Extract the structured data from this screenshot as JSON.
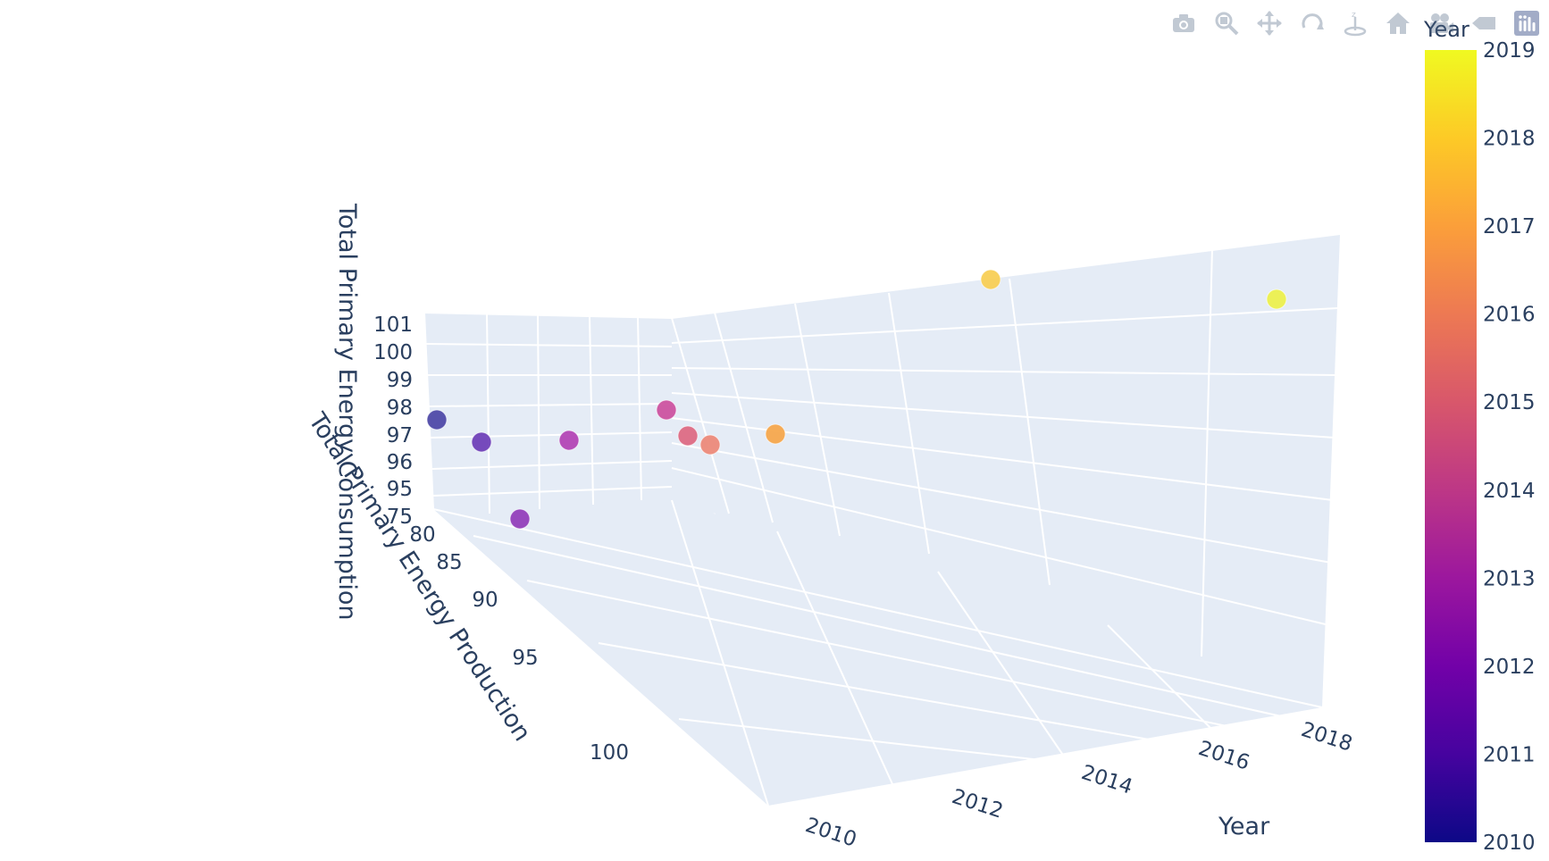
{
  "modebar": {
    "buttons": [
      {
        "name": "download-png-button",
        "icon": "camera-icon"
      },
      {
        "name": "zoom-button",
        "icon": "zoom-icon"
      },
      {
        "name": "pan-button",
        "icon": "pan-icon"
      },
      {
        "name": "orbit-rotation-button",
        "icon": "orbit-icon"
      },
      {
        "name": "turntable-rotation-button",
        "icon": "turntable-icon"
      },
      {
        "name": "reset-camera-button",
        "icon": "home-icon"
      },
      {
        "name": "last-save-camera-button",
        "icon": "camera-video-icon"
      },
      {
        "name": "hover-toggle-button",
        "icon": "hover-icon"
      },
      {
        "name": "plotly-logo-button",
        "icon": "plotly-logo-icon"
      }
    ]
  },
  "chart_data": {
    "type": "scatter",
    "dimensions": "3d",
    "title": "",
    "xlabel": "Year",
    "ylabel": "Total Primary Energy Production",
    "zlabel": "Total Primary Energy Consumption",
    "x_ticks": [
      2010,
      2012,
      2014,
      2016,
      2018
    ],
    "y_ticks": [
      80,
      85,
      90,
      95,
      100
    ],
    "z_ticks": [
      75,
      95,
      96,
      97,
      98,
      99,
      100,
      101
    ],
    "grid": true,
    "color_by": "Year",
    "colorscale": "plasma",
    "colorbar": {
      "title": "Year",
      "ticks": [
        2010,
        2011,
        2012,
        2013,
        2014,
        2015,
        2016,
        2017,
        2018,
        2019
      ],
      "colors": [
        "#0d0887",
        "#46039f",
        "#7201a8",
        "#9c179e",
        "#bd3786",
        "#d8576b",
        "#ed7953",
        "#fb9f3a",
        "#fdca26",
        "#f0f921"
      ],
      "placement": "right"
    },
    "points": [
      {
        "year": 2010,
        "color": "#4f4aa8"
      },
      {
        "year": 2011,
        "color": "#7041b8"
      },
      {
        "year": 2012,
        "color": "#9440bb"
      },
      {
        "year": 2013,
        "color": "#b346b5"
      },
      {
        "year": 2014,
        "color": "#cc53a0"
      },
      {
        "year": 2015,
        "color": "#dd6b84"
      },
      {
        "year": 2016,
        "color": "#ec8a7a"
      },
      {
        "year": 2017,
        "color": "#f6a84d"
      },
      {
        "year": 2018,
        "color": "#f8cf55"
      },
      {
        "year": 2019,
        "color": "#ecf04e"
      }
    ]
  }
}
